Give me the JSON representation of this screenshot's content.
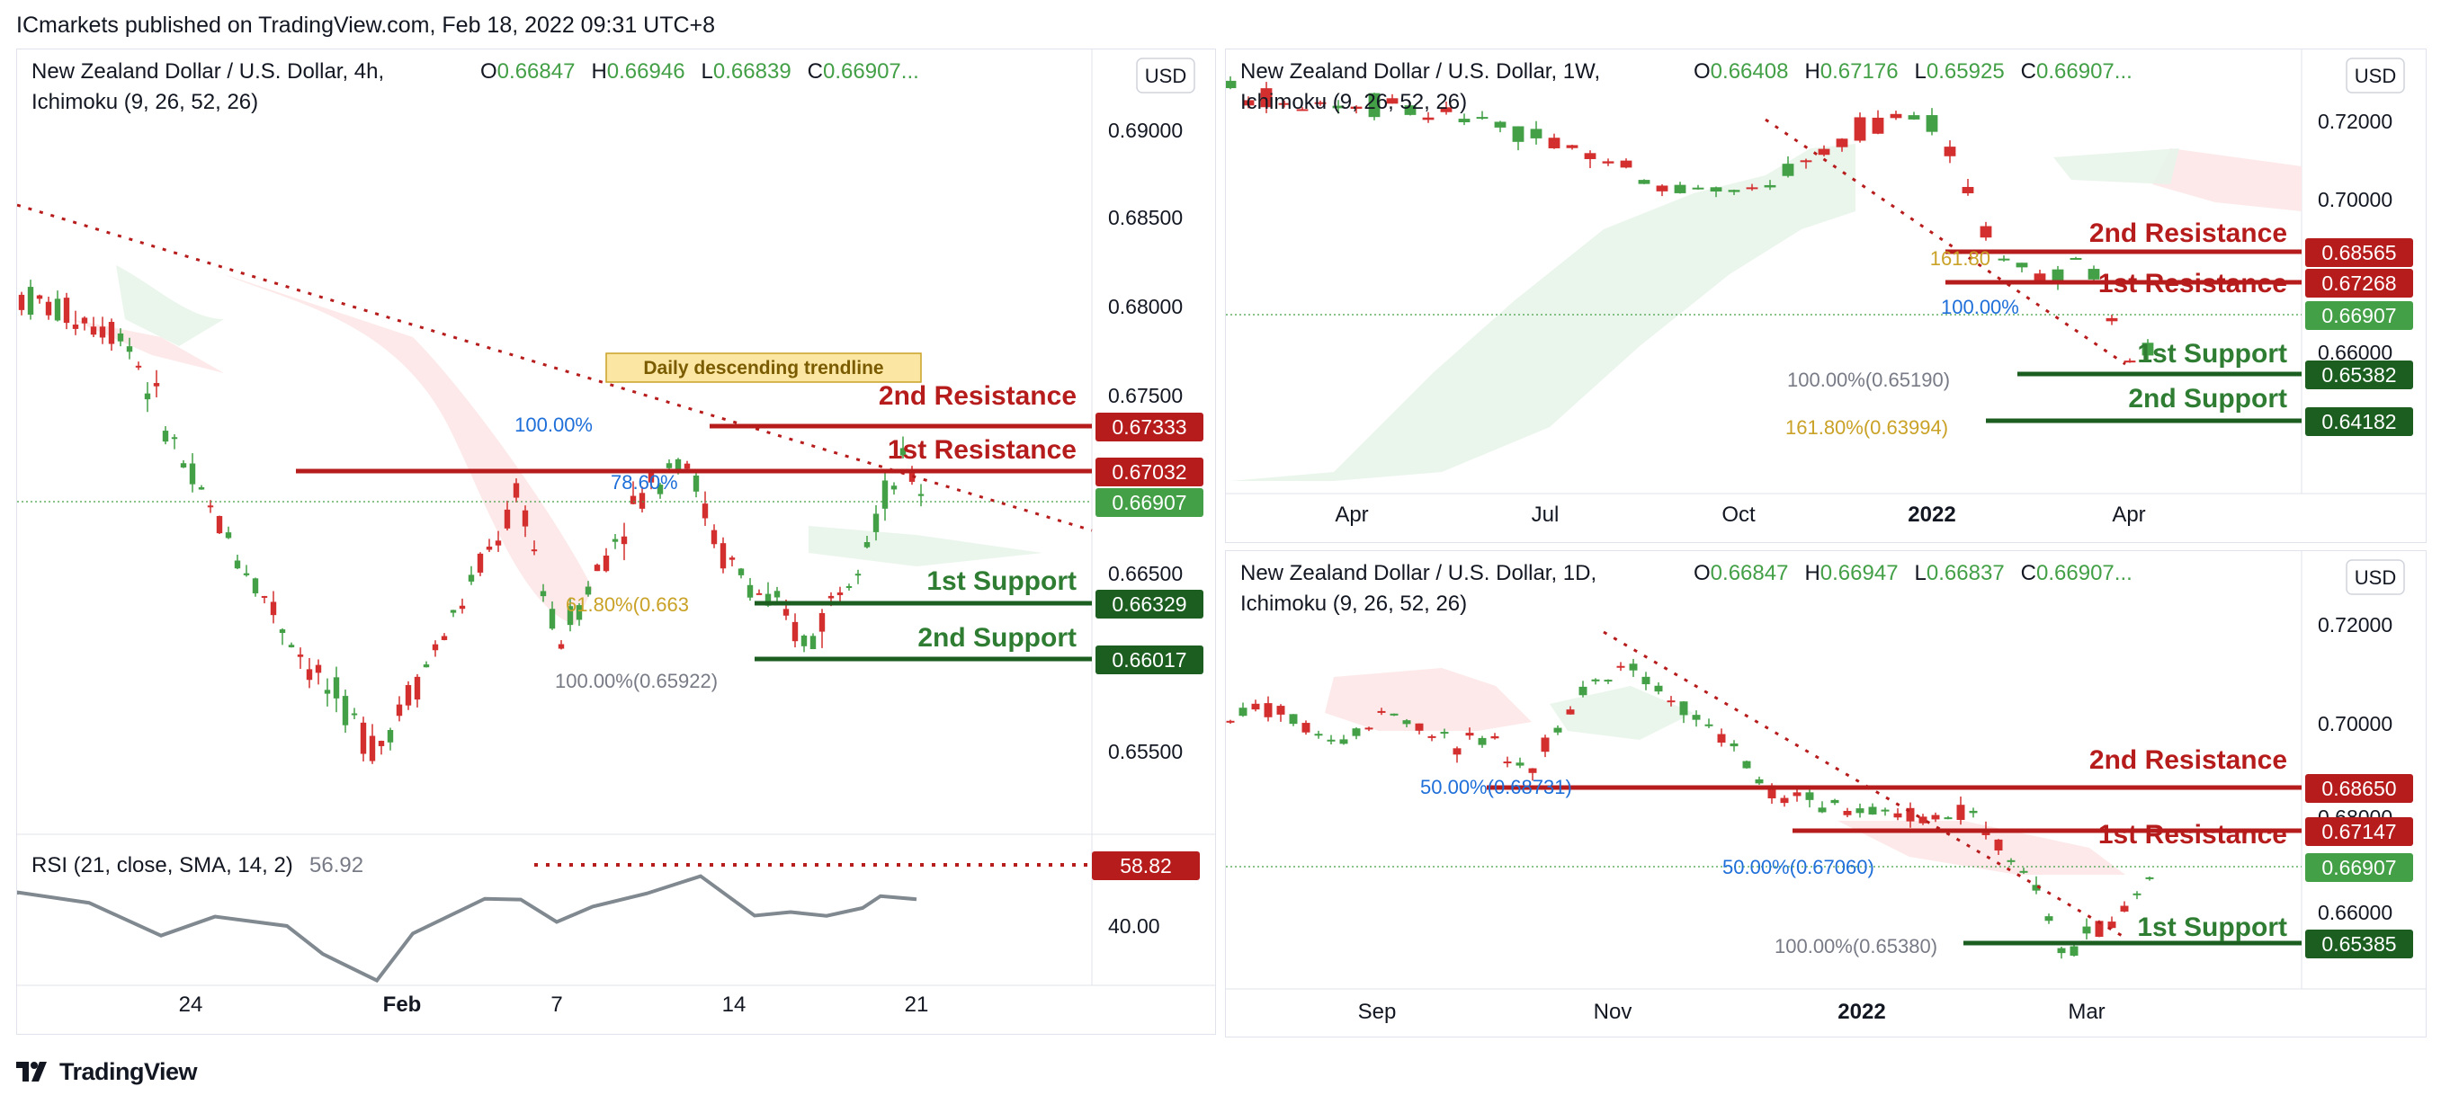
{
  "header": {
    "published": "ICmarkets published on TradingView.com, Feb 18, 2022 09:31 UTC+8"
  },
  "footer": {
    "brand": "TradingView"
  },
  "colors": {
    "red": "#b71c1c",
    "green": "#2e7d32",
    "dark_green": "#1b5e20",
    "up": "#43a047",
    "down": "#d32f2f",
    "blue": "#1e6fd9",
    "gold": "#c9a227",
    "grey": "#787b86"
  },
  "chart_data": [
    {
      "id": "4h",
      "type": "candlestick",
      "title": "New Zealand Dollar / U.S. Dollar, 4h,",
      "indicator": "Ichimoku (9, 26, 52, 26)",
      "ohlc": {
        "o_label": "O",
        "o": "0.66847",
        "h_label": "H",
        "h": "0.66946",
        "l_label": "L",
        "l": "0.66839",
        "c_label": "C",
        "c": "0.66907..."
      },
      "currency": "USD",
      "ylim": [
        0.651,
        0.6925
      ],
      "y_ticks": [
        "0.69000",
        "0.68500",
        "0.68000",
        "0.67500",
        "0.66500",
        "0.65500"
      ],
      "x_ticks": [
        "24",
        "Feb",
        "7",
        "14",
        "21"
      ],
      "price_tags": [
        {
          "value": "0.67333",
          "color": "red"
        },
        {
          "value": "0.67032",
          "color": "red"
        },
        {
          "value": "0.66907",
          "color": "green"
        },
        {
          "value": "0.66329",
          "color": "dark_green"
        },
        {
          "value": "0.66017",
          "color": "dark_green"
        }
      ],
      "levels": [
        {
          "name": "2nd Resistance",
          "value": 0.67333,
          "color": "red"
        },
        {
          "name": "1st Resistance",
          "value": 0.67032,
          "color": "red"
        },
        {
          "name": "1st Support",
          "value": 0.66329,
          "color": "green"
        },
        {
          "name": "2nd Support",
          "value": 0.66017,
          "color": "green"
        }
      ],
      "annotations": [
        "Daily descending trendline",
        "100.00%",
        "78.60%",
        "61.80%(0.663",
        "100.00%(0.65922)"
      ],
      "rsi": {
        "label": "RSI (21, close, SMA, 14, 2)",
        "value": "56.92",
        "tag": "58.82",
        "tick": "40.00"
      }
    },
    {
      "id": "1w",
      "type": "candlestick",
      "title": "New Zealand Dollar / U.S. Dollar, 1W,",
      "indicator": "Ichimoku (9, 26, 52, 26)",
      "ohlc": {
        "o_label": "O",
        "o": "0.66408",
        "h_label": "H",
        "h": "0.67176",
        "l_label": "L",
        "l": "0.65925",
        "c_label": "C",
        "c": "0.66907..."
      },
      "currency": "USD",
      "ylim": [
        0.6305,
        0.7255
      ],
      "y_ticks": [
        "0.72000",
        "0.70000",
        "0.66000"
      ],
      "x_ticks": [
        "Apr",
        "Jul",
        "Oct",
        "2022",
        "Apr"
      ],
      "price_tags": [
        {
          "value": "0.68565",
          "color": "red"
        },
        {
          "value": "0.67268",
          "color": "red"
        },
        {
          "value": "0.66907",
          "color": "green"
        },
        {
          "value": "0.65382",
          "color": "dark_green"
        },
        {
          "value": "0.64182",
          "color": "dark_green"
        }
      ],
      "levels": [
        {
          "name": "2nd Resistance",
          "value": 0.68565,
          "color": "red"
        },
        {
          "name": "1st Resistance",
          "value": 0.67268,
          "color": "red"
        },
        {
          "name": "1st Support",
          "value": 0.65382,
          "color": "green"
        },
        {
          "name": "2nd Support",
          "value": 0.64182,
          "color": "green"
        }
      ],
      "annotations": [
        "161.80",
        "100.00%",
        "100.00%(0.65190)",
        "161.80%(0.63994)"
      ]
    },
    {
      "id": "1d",
      "type": "candlestick",
      "title": "New Zealand Dollar / U.S. Dollar, 1D,",
      "indicator": "Ichimoku (9, 26, 52, 26)",
      "ohlc": {
        "o_label": "O",
        "o": "0.66847",
        "h_label": "H",
        "h": "0.66947",
        "l_label": "L",
        "l": "0.66837",
        "c_label": "C",
        "c": "0.66907..."
      },
      "currency": "USD",
      "ylim": [
        0.6465,
        0.7265
      ],
      "y_ticks": [
        "0.72000",
        "0.70000",
        "0.68000",
        "0.66000"
      ],
      "x_ticks": [
        "Sep",
        "Nov",
        "2022",
        "Mar"
      ],
      "price_tags": [
        {
          "value": "0.68650",
          "color": "red"
        },
        {
          "value": "0.67147",
          "color": "red"
        },
        {
          "value": "0.66907",
          "color": "green"
        },
        {
          "value": "0.65385",
          "color": "dark_green"
        }
      ],
      "levels": [
        {
          "name": "2nd Resistance",
          "value": 0.6865,
          "color": "red"
        },
        {
          "name": "1st Resistance",
          "value": 0.67147,
          "color": "red"
        },
        {
          "name": "1st Support",
          "value": 0.65385,
          "color": "green"
        }
      ],
      "annotations": [
        "50.00%(0.68731)",
        "50.00%(0.67060)",
        "100.00%(0.65380)"
      ]
    }
  ]
}
